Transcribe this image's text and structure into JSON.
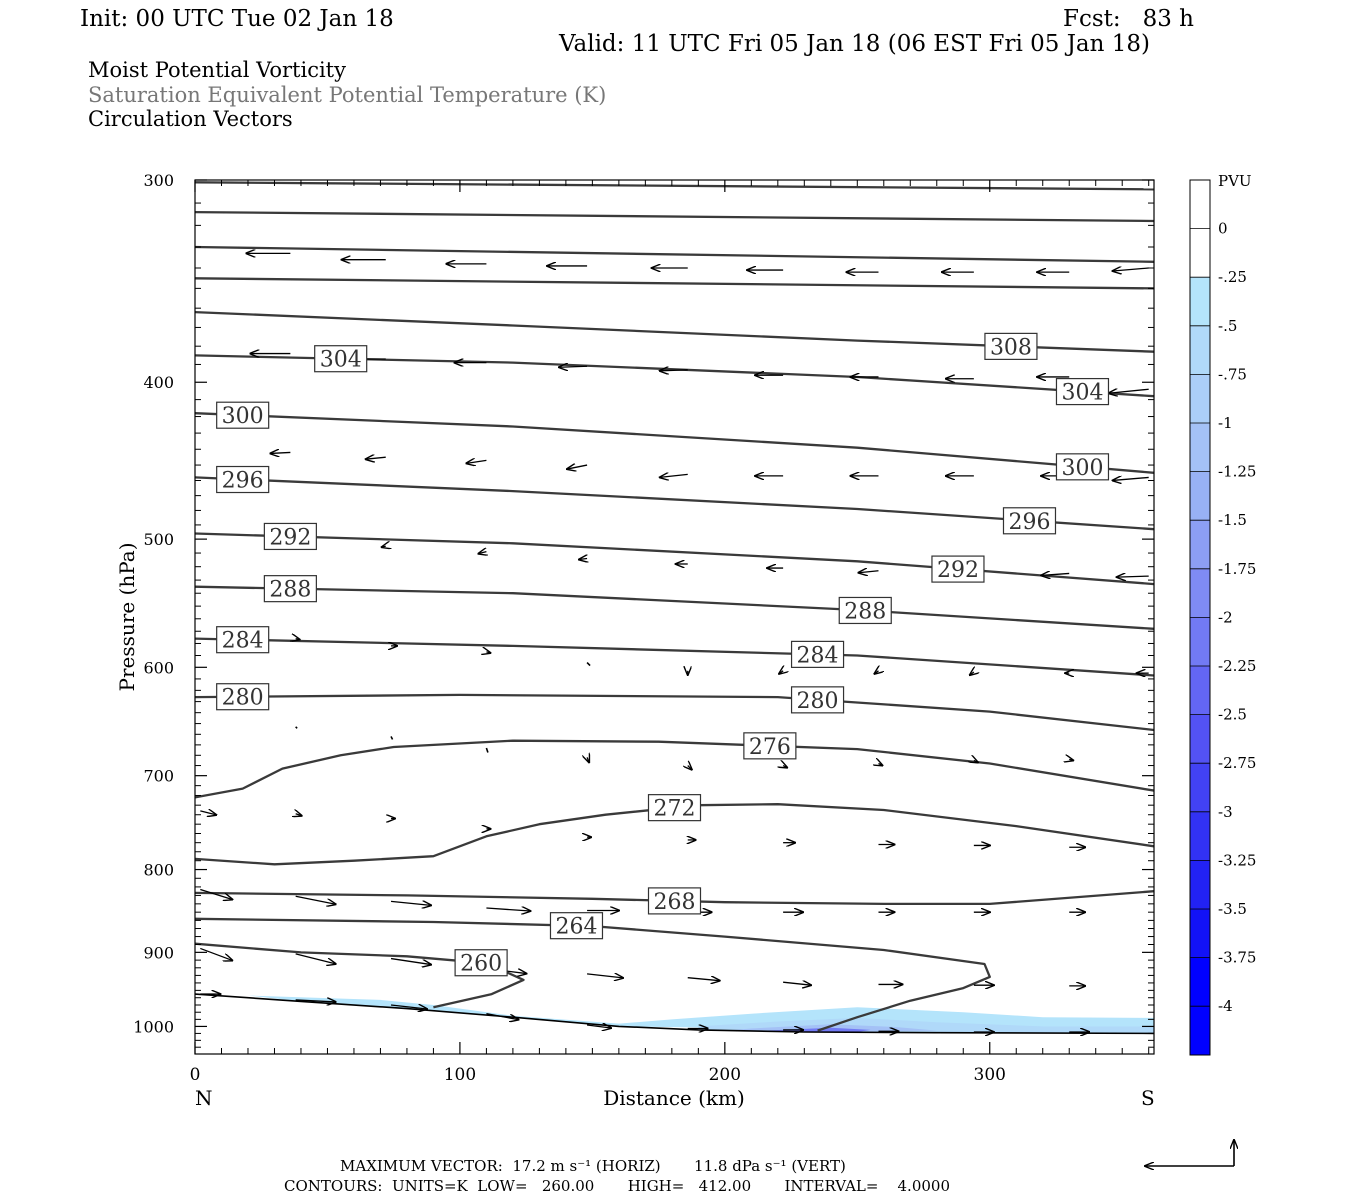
{
  "header": {
    "init": "Init: 00 UTC Tue 02 Jan 18",
    "fcst": "Fcst:   83 h",
    "valid": "Valid: 11 UTC Fri 05 Jan 18 (06 EST Fri 05 Jan 18)",
    "field1": "Moist Potential Vorticity",
    "field2": "Saturation Equivalent Potential Temperature (K)",
    "field3": "Circulation Vectors"
  },
  "footer": {
    "max_vector": "MAXIMUM VECTOR:  17.2 m s⁻¹ (HORIZ)       11.8 dPa s⁻¹ (VERT)",
    "contours": "CONTOURS:  UNITS=K  LOW=   260.00       HIGH=   412.00       INTERVAL=    4.0000"
  },
  "colorbar": {
    "title": "PVU",
    "labels": [
      "0",
      "-.25",
      "-.5",
      "-.75",
      "-1",
      "-1.25",
      "-1.5",
      "-1.75",
      "-2",
      "-2.25",
      "-2.5",
      "-2.75",
      "-3",
      "-3.25",
      "-3.5",
      "-3.75",
      "-4"
    ],
    "colors": [
      "#ffffff",
      "#ffffff",
      "#b4e4fb",
      "#b0d9f9",
      "#abcef8",
      "#a4c1f6",
      "#98b1f5",
      "#8c9ef4",
      "#7f8bf4",
      "#727af4",
      "#6366f4",
      "#5352f4",
      "#4242f4",
      "#3232f4",
      "#2222f4",
      "#1212f6",
      "#0000ff"
    ]
  },
  "chart_data": {
    "type": "cross-section",
    "title": "",
    "xlabel": "Distance (km)",
    "ylabel": "Pressure (hPa)",
    "xlim": [
      0,
      362
    ],
    "ylim": [
      300,
      1040
    ],
    "y_scale": "log",
    "x_ticks": [
      0,
      100,
      200,
      300
    ],
    "y_ticks": [
      300,
      400,
      500,
      600,
      700,
      800,
      900,
      1000
    ],
    "x_end_labels": {
      "left": "N",
      "right": "S"
    },
    "terrain": [
      [
        0,
        955
      ],
      [
        40,
        965
      ],
      [
        80,
        975
      ],
      [
        120,
        987
      ],
      [
        160,
        1000
      ],
      [
        190,
        1005
      ],
      [
        230,
        1008
      ],
      [
        280,
        1009
      ],
      [
        362,
        1010
      ]
    ],
    "contours": [
      {
        "label": "",
        "points": [
          [
            0,
            301
          ],
          [
            362,
            304
          ]
        ]
      },
      {
        "label": "",
        "points": [
          [
            0,
            314
          ],
          [
            362,
            318
          ]
        ]
      },
      {
        "label": "",
        "points": [
          [
            0,
            330
          ],
          [
            362,
            337
          ]
        ]
      },
      {
        "label": "",
        "points": [
          [
            0,
            345
          ],
          [
            362,
            350
          ]
        ]
      },
      {
        "label": "308",
        "label_x": 308,
        "points": [
          [
            0,
            362
          ],
          [
            120,
            369
          ],
          [
            250,
            377
          ],
          [
            362,
            383
          ]
        ]
      },
      {
        "label": "304",
        "label_x": 55,
        "points": [
          [
            0,
            385
          ],
          [
            120,
            389
          ],
          [
            250,
            397
          ],
          [
            362,
            408
          ]
        ]
      },
      {
        "label": "304",
        "label_x": 335,
        "points": [
          [
            0,
            385
          ],
          [
            120,
            389
          ],
          [
            250,
            397
          ],
          [
            362,
            408
          ]
        ]
      },
      {
        "label": "300",
        "label_x": 18,
        "points": [
          [
            0,
            418
          ],
          [
            120,
            426
          ],
          [
            250,
            439
          ],
          [
            362,
            455
          ]
        ]
      },
      {
        "label": "300",
        "label_x": 335,
        "points": [
          [
            0,
            418
          ],
          [
            120,
            426
          ],
          [
            250,
            439
          ],
          [
            362,
            455
          ]
        ]
      },
      {
        "label": "296",
        "label_x": 18,
        "points": [
          [
            0,
            458
          ],
          [
            120,
            467
          ],
          [
            250,
            479
          ],
          [
            362,
            493
          ]
        ]
      },
      {
        "label": "296",
        "label_x": 315,
        "points": [
          [
            0,
            458
          ],
          [
            120,
            467
          ],
          [
            250,
            479
          ],
          [
            362,
            493
          ]
        ]
      },
      {
        "label": "292",
        "label_x": 36,
        "points": [
          [
            0,
            496
          ],
          [
            120,
            503
          ],
          [
            250,
            516
          ],
          [
            362,
            533
          ]
        ]
      },
      {
        "label": "292",
        "label_x": 288,
        "points": [
          [
            0,
            496
          ],
          [
            120,
            503
          ],
          [
            250,
            516
          ],
          [
            362,
            533
          ]
        ]
      },
      {
        "label": "288",
        "label_x": 36,
        "points": [
          [
            0,
            535
          ],
          [
            120,
            540
          ],
          [
            250,
            553
          ],
          [
            362,
            568
          ]
        ]
      },
      {
        "label": "288",
        "label_x": 253,
        "points": [
          [
            0,
            535
          ],
          [
            120,
            540
          ],
          [
            250,
            553
          ],
          [
            362,
            568
          ]
        ]
      },
      {
        "label": "284",
        "label_x": 18,
        "points": [
          [
            0,
            576
          ],
          [
            120,
            582
          ],
          [
            250,
            590
          ],
          [
            362,
            607
          ]
        ]
      },
      {
        "label": "284",
        "label_x": 235,
        "points": [
          [
            0,
            576
          ],
          [
            120,
            582
          ],
          [
            250,
            590
          ],
          [
            362,
            607
          ]
        ]
      },
      {
        "label": "280",
        "label_x": 18,
        "points": [
          [
            0,
            626
          ],
          [
            100,
            624
          ],
          [
            220,
            626
          ],
          [
            300,
            639
          ],
          [
            362,
            656
          ]
        ]
      },
      {
        "label": "280",
        "label_x": 235,
        "points": [
          [
            0,
            626
          ],
          [
            100,
            624
          ],
          [
            220,
            626
          ],
          [
            300,
            639
          ],
          [
            362,
            656
          ]
        ]
      },
      {
        "label": "276",
        "label_x": 217,
        "points": [
          [
            0,
            722
          ],
          [
            18,
            713
          ],
          [
            33,
            693
          ],
          [
            55,
            680
          ],
          [
            75,
            672
          ],
          [
            120,
            666
          ],
          [
            175,
            667
          ],
          [
            250,
            674
          ],
          [
            300,
            688
          ],
          [
            362,
            715
          ]
        ]
      },
      {
        "label": "272",
        "label_x": 181,
        "points": [
          [
            0,
            788
          ],
          [
            30,
            794
          ],
          [
            60,
            790
          ],
          [
            90,
            785
          ],
          [
            110,
            763
          ],
          [
            130,
            750
          ],
          [
            155,
            740
          ],
          [
            190,
            730
          ],
          [
            220,
            729
          ],
          [
            260,
            735
          ],
          [
            310,
            752
          ],
          [
            362,
            774
          ]
        ]
      },
      {
        "label": "268",
        "label_x": 181,
        "points": [
          [
            0,
            827
          ],
          [
            80,
            830
          ],
          [
            150,
            834
          ],
          [
            200,
            838
          ],
          [
            260,
            840
          ],
          [
            300,
            840
          ],
          [
            362,
            825
          ]
        ]
      },
      {
        "label": "264",
        "label_x": 144,
        "points": [
          [
            0,
            858
          ],
          [
            90,
            862
          ],
          [
            150,
            867
          ],
          [
            200,
            880
          ],
          [
            260,
            897
          ],
          [
            298,
            915
          ],
          [
            300,
            932
          ],
          [
            290,
            947
          ],
          [
            270,
            964
          ],
          [
            250,
            987
          ],
          [
            235,
            1006
          ]
        ]
      },
      {
        "label": "260",
        "label_x": 108,
        "points": [
          [
            0,
            889
          ],
          [
            40,
            900
          ],
          [
            80,
            905
          ],
          [
            110,
            914
          ],
          [
            124,
            936
          ],
          [
            112,
            955
          ],
          [
            90,
            973
          ]
        ]
      }
    ],
    "pv_fill": [
      {
        "value": -0.25,
        "points": [
          [
            20,
            957
          ],
          [
            70,
            963
          ],
          [
            90,
            970
          ],
          [
            120,
            985
          ],
          [
            160,
            996
          ],
          [
            180,
            990
          ],
          [
            210,
            982
          ],
          [
            250,
            973
          ],
          [
            290,
            980
          ],
          [
            320,
            987
          ],
          [
            362,
            988
          ],
          [
            362,
            1010
          ],
          [
            160,
            1000
          ],
          [
            120,
            987
          ],
          [
            80,
            975
          ],
          [
            40,
            965
          ]
        ]
      },
      {
        "value": -0.5,
        "points": [
          [
            190,
            1000
          ],
          [
            220,
            993
          ],
          [
            250,
            988
          ],
          [
            280,
            994
          ],
          [
            320,
            1000
          ],
          [
            362,
            1000
          ],
          [
            362,
            1010
          ],
          [
            230,
            1008
          ],
          [
            190,
            1005
          ]
        ]
      },
      {
        "value": -1.0,
        "points": [
          [
            210,
            1003
          ],
          [
            240,
            997
          ],
          [
            265,
            1001
          ],
          [
            280,
            1006
          ],
          [
            230,
            1008
          ],
          [
            200,
            1006
          ]
        ]
      },
      {
        "value": -2.0,
        "points": [
          [
            215,
            1006
          ],
          [
            240,
            1002
          ],
          [
            255,
            1005
          ],
          [
            250,
            1008
          ],
          [
            220,
            1008
          ]
        ]
      }
    ],
    "vectors": [
      [
        36,
        333,
        -22,
        0
      ],
      [
        72,
        336,
        -22,
        0
      ],
      [
        110,
        338,
        -20,
        0
      ],
      [
        148,
        339,
        -20,
        0
      ],
      [
        186,
        340,
        -18,
        0
      ],
      [
        222,
        341,
        -18,
        0
      ],
      [
        258,
        342,
        -16,
        0
      ],
      [
        294,
        342,
        -16,
        0
      ],
      [
        330,
        342,
        -16,
        0
      ],
      [
        360,
        340,
        -18,
        3
      ],
      [
        36,
        384,
        -20,
        0
      ],
      [
        72,
        387,
        -20,
        0
      ],
      [
        110,
        389,
        -16,
        0
      ],
      [
        148,
        391,
        -14,
        1
      ],
      [
        186,
        393,
        -14,
        1
      ],
      [
        222,
        396,
        -14,
        0
      ],
      [
        258,
        397,
        -14,
        0
      ],
      [
        294,
        398,
        -14,
        0
      ],
      [
        330,
        397,
        -16,
        0
      ],
      [
        360,
        404,
        -20,
        4
      ],
      [
        36,
        442,
        -10,
        1
      ],
      [
        72,
        445,
        -10,
        2
      ],
      [
        110,
        447,
        -10,
        3
      ],
      [
        148,
        450,
        -10,
        4
      ],
      [
        186,
        456,
        -14,
        3
      ],
      [
        222,
        457,
        -14,
        0
      ],
      [
        258,
        457,
        -14,
        0
      ],
      [
        294,
        457,
        -14,
        0
      ],
      [
        330,
        457,
        -14,
        0
      ],
      [
        360,
        458,
        -18,
        3
      ],
      [
        72,
        505,
        -2,
        1
      ],
      [
        110,
        509,
        -4,
        2
      ],
      [
        148,
        514,
        -4,
        1
      ],
      [
        186,
        518,
        -6,
        0
      ],
      [
        222,
        521,
        -8,
        0
      ],
      [
        258,
        523,
        -10,
        2
      ],
      [
        294,
        524,
        -12,
        3
      ],
      [
        330,
        525,
        -14,
        2
      ],
      [
        360,
        527,
        -16,
        1
      ],
      [
        38,
        576,
        2,
        1
      ],
      [
        74,
        582,
        3,
        0
      ],
      [
        110,
        587,
        2,
        1
      ],
      [
        148,
        596,
        1,
        2
      ],
      [
        186,
        603,
        0,
        4
      ],
      [
        222,
        603,
        -2,
        3
      ],
      [
        258,
        603,
        -2,
        3
      ],
      [
        294,
        604,
        -2,
        3
      ],
      [
        330,
        605,
        -2,
        0
      ],
      [
        360,
        605,
        -6,
        0
      ],
      [
        38,
        653,
        0,
        1
      ],
      [
        74,
        662,
        0,
        2
      ],
      [
        110,
        673,
        0,
        3
      ],
      [
        148,
        682,
        1,
        5
      ],
      [
        186,
        690,
        2,
        4
      ],
      [
        222,
        690,
        2,
        2
      ],
      [
        258,
        688,
        2,
        2
      ],
      [
        294,
        685,
        2,
        2
      ],
      [
        330,
        684,
        2,
        1
      ],
      [
        2,
        736,
        8,
        4
      ],
      [
        38,
        739,
        3,
        2
      ],
      [
        74,
        744,
        2,
        0
      ],
      [
        110,
        755,
        2,
        0
      ],
      [
        148,
        764,
        2,
        0
      ],
      [
        186,
        767,
        4,
        0
      ],
      [
        222,
        770,
        6,
        0
      ],
      [
        258,
        772,
        8,
        0
      ],
      [
        294,
        773,
        8,
        0
      ],
      [
        330,
        775,
        8,
        0
      ],
      [
        2,
        823,
        16,
        10
      ],
      [
        38,
        831,
        20,
        8
      ],
      [
        74,
        837,
        20,
        4
      ],
      [
        110,
        845,
        22,
        3
      ],
      [
        148,
        848,
        16,
        0
      ],
      [
        186,
        850,
        12,
        0
      ],
      [
        222,
        850,
        10,
        0
      ],
      [
        258,
        850,
        8,
        0
      ],
      [
        294,
        850,
        8,
        0
      ],
      [
        330,
        850,
        8,
        0
      ],
      [
        2,
        895,
        16,
        12
      ],
      [
        38,
        902,
        20,
        10
      ],
      [
        74,
        908,
        20,
        6
      ],
      [
        110,
        921,
        20,
        5
      ],
      [
        148,
        928,
        18,
        4
      ],
      [
        186,
        933,
        16,
        3
      ],
      [
        222,
        939,
        14,
        3
      ],
      [
        258,
        942,
        12,
        0
      ],
      [
        294,
        943,
        10,
        0
      ],
      [
        330,
        944,
        8,
        0
      ],
      [
        2,
        955,
        10,
        0
      ],
      [
        38,
        963,
        20,
        2
      ],
      [
        74,
        970,
        18,
        4
      ],
      [
        110,
        982,
        16,
        6
      ],
      [
        148,
        998,
        12,
        3
      ],
      [
        186,
        1003,
        10,
        0
      ],
      [
        222,
        1005,
        10,
        0
      ],
      [
        258,
        1007,
        10,
        0
      ],
      [
        294,
        1008,
        10,
        0
      ],
      [
        330,
        1008,
        10,
        0
      ]
    ]
  }
}
